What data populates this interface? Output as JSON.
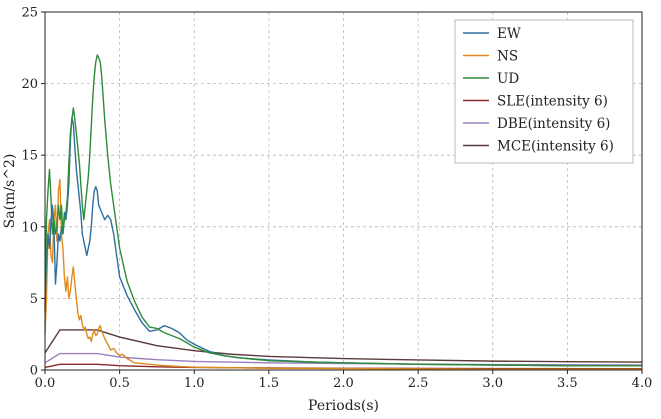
{
  "chart_data": {
    "type": "line",
    "title": "",
    "xlabel": "Periods(s)",
    "ylabel": "Sa(m/s^2)",
    "xlim": [
      0,
      4.0
    ],
    "ylim": [
      0,
      25
    ],
    "xticks": [
      0.0,
      0.5,
      1.0,
      1.5,
      2.0,
      2.5,
      3.0,
      3.5,
      4.0
    ],
    "xtick_labels": [
      "0.0",
      "0.5",
      "1.0",
      "1.5",
      "2.0",
      "2.5",
      "3.0",
      "3.5",
      "4.0"
    ],
    "yticks": [
      0,
      5,
      10,
      15,
      20,
      25
    ],
    "ytick_labels": [
      "0",
      "5",
      "10",
      "15",
      "20",
      "25"
    ],
    "grid": true,
    "legend_position": "top-right",
    "series": [
      {
        "name": "EW",
        "color": "#2e6f9e",
        "points": [
          [
            0,
            4.5
          ],
          [
            0.01,
            7.5
          ],
          [
            0.02,
            9.5
          ],
          [
            0.03,
            8.5
          ],
          [
            0.04,
            10.5
          ],
          [
            0.05,
            11.5
          ],
          [
            0.06,
            10.0
          ],
          [
            0.07,
            6.0
          ],
          [
            0.08,
            7.5
          ],
          [
            0.09,
            9.5
          ],
          [
            0.1,
            9.0
          ],
          [
            0.11,
            10.0
          ],
          [
            0.12,
            9.5
          ],
          [
            0.13,
            11.0
          ],
          [
            0.14,
            10.5
          ],
          [
            0.15,
            11.5
          ],
          [
            0.16,
            13.0
          ],
          [
            0.17,
            16.0
          ],
          [
            0.18,
            17.6
          ],
          [
            0.19,
            17.2
          ],
          [
            0.2,
            15.5
          ],
          [
            0.21,
            14.0
          ],
          [
            0.22,
            13.0
          ],
          [
            0.23,
            12.0
          ],
          [
            0.24,
            11.0
          ],
          [
            0.25,
            9.5
          ],
          [
            0.26,
            9.0
          ],
          [
            0.27,
            8.5
          ],
          [
            0.28,
            8.0
          ],
          [
            0.29,
            8.5
          ],
          [
            0.3,
            9.0
          ],
          [
            0.31,
            10.0
          ],
          [
            0.32,
            11.5
          ],
          [
            0.33,
            12.5
          ],
          [
            0.34,
            12.8
          ],
          [
            0.35,
            12.5
          ],
          [
            0.36,
            11.5
          ],
          [
            0.38,
            11.0
          ],
          [
            0.4,
            10.5
          ],
          [
            0.42,
            10.8
          ],
          [
            0.44,
            10.5
          ],
          [
            0.46,
            9.5
          ],
          [
            0.48,
            8.0
          ],
          [
            0.5,
            6.5
          ],
          [
            0.55,
            5.2
          ],
          [
            0.6,
            4.2
          ],
          [
            0.65,
            3.3
          ],
          [
            0.7,
            2.7
          ],
          [
            0.75,
            2.8
          ],
          [
            0.8,
            3.1
          ],
          [
            0.85,
            2.9
          ],
          [
            0.9,
            2.6
          ],
          [
            0.95,
            2.1
          ],
          [
            1.0,
            1.8
          ],
          [
            1.1,
            1.3
          ],
          [
            1.2,
            1.0
          ],
          [
            1.3,
            0.85
          ],
          [
            1.5,
            0.7
          ],
          [
            1.8,
            0.55
          ],
          [
            2.0,
            0.5
          ],
          [
            2.5,
            0.4
          ],
          [
            3.0,
            0.35
          ],
          [
            3.5,
            0.3
          ],
          [
            4.0,
            0.3
          ]
        ]
      },
      {
        "name": "NS",
        "color": "#e08a1e",
        "points": [
          [
            0,
            2.5
          ],
          [
            0.01,
            5.0
          ],
          [
            0.02,
            9.5
          ],
          [
            0.03,
            10.5
          ],
          [
            0.04,
            8.0
          ],
          [
            0.05,
            7.5
          ],
          [
            0.06,
            10.5
          ],
          [
            0.07,
            11.5
          ],
          [
            0.08,
            9.0
          ],
          [
            0.09,
            12.5
          ],
          [
            0.1,
            13.3
          ],
          [
            0.11,
            9.5
          ],
          [
            0.12,
            8.5
          ],
          [
            0.13,
            6.5
          ],
          [
            0.14,
            5.5
          ],
          [
            0.15,
            6.5
          ],
          [
            0.16,
            5.0
          ],
          [
            0.17,
            5.5
          ],
          [
            0.18,
            6.5
          ],
          [
            0.19,
            7.2
          ],
          [
            0.2,
            6.0
          ],
          [
            0.21,
            5.0
          ],
          [
            0.22,
            4.0
          ],
          [
            0.23,
            3.5
          ],
          [
            0.24,
            3.8
          ],
          [
            0.25,
            3.2
          ],
          [
            0.26,
            2.8
          ],
          [
            0.27,
            3.0
          ],
          [
            0.28,
            2.5
          ],
          [
            0.29,
            2.2
          ],
          [
            0.3,
            2.3
          ],
          [
            0.31,
            2.0
          ],
          [
            0.32,
            2.5
          ],
          [
            0.33,
            2.8
          ],
          [
            0.34,
            2.4
          ],
          [
            0.35,
            2.5
          ],
          [
            0.36,
            2.9
          ],
          [
            0.37,
            3.1
          ],
          [
            0.38,
            2.7
          ],
          [
            0.4,
            2.2
          ],
          [
            0.42,
            1.8
          ],
          [
            0.44,
            1.4
          ],
          [
            0.46,
            1.5
          ],
          [
            0.48,
            1.2
          ],
          [
            0.5,
            1.0
          ],
          [
            0.52,
            1.1
          ],
          [
            0.55,
            0.8
          ],
          [
            0.6,
            0.5
          ],
          [
            0.7,
            0.4
          ],
          [
            0.8,
            0.3
          ],
          [
            1.0,
            0.2
          ],
          [
            1.5,
            0.12
          ],
          [
            2.0,
            0.1
          ],
          [
            3.0,
            0.05
          ],
          [
            4.0,
            0.05
          ]
        ]
      },
      {
        "name": "UD",
        "color": "#2e8b3a",
        "points": [
          [
            0,
            4.0
          ],
          [
            0.01,
            10.5
          ],
          [
            0.02,
            12.5
          ],
          [
            0.03,
            14.0
          ],
          [
            0.04,
            12.0
          ],
          [
            0.05,
            9.5
          ],
          [
            0.06,
            10.5
          ],
          [
            0.07,
            9.5
          ],
          [
            0.08,
            10.0
          ],
          [
            0.09,
            11.5
          ],
          [
            0.1,
            10.5
          ],
          [
            0.11,
            11.5
          ],
          [
            0.12,
            9.5
          ],
          [
            0.13,
            10.5
          ],
          [
            0.14,
            11.0
          ],
          [
            0.15,
            12.0
          ],
          [
            0.16,
            14.5
          ],
          [
            0.17,
            16.5
          ],
          [
            0.18,
            17.5
          ],
          [
            0.19,
            18.3
          ],
          [
            0.2,
            17.5
          ],
          [
            0.21,
            16.5
          ],
          [
            0.22,
            15.5
          ],
          [
            0.23,
            14.5
          ],
          [
            0.24,
            13.0
          ],
          [
            0.25,
            11.5
          ],
          [
            0.26,
            10.5
          ],
          [
            0.27,
            11.5
          ],
          [
            0.28,
            12.5
          ],
          [
            0.29,
            13.5
          ],
          [
            0.3,
            15.0
          ],
          [
            0.31,
            17.0
          ],
          [
            0.32,
            19.0
          ],
          [
            0.33,
            20.5
          ],
          [
            0.34,
            21.5
          ],
          [
            0.35,
            22.0
          ],
          [
            0.36,
            21.8
          ],
          [
            0.37,
            21.5
          ],
          [
            0.38,
            20.5
          ],
          [
            0.39,
            19.0
          ],
          [
            0.4,
            17.5
          ],
          [
            0.42,
            15.0
          ],
          [
            0.44,
            13.0
          ],
          [
            0.46,
            11.5
          ],
          [
            0.48,
            10.0
          ],
          [
            0.5,
            8.5
          ],
          [
            0.55,
            6.2
          ],
          [
            0.6,
            4.8
          ],
          [
            0.65,
            3.7
          ],
          [
            0.7,
            3.0
          ],
          [
            0.75,
            2.9
          ],
          [
            0.8,
            2.6
          ],
          [
            0.85,
            2.4
          ],
          [
            0.9,
            2.2
          ],
          [
            0.95,
            1.9
          ],
          [
            1.0,
            1.6
          ],
          [
            1.1,
            1.2
          ],
          [
            1.2,
            1.0
          ],
          [
            1.3,
            0.85
          ],
          [
            1.5,
            0.65
          ],
          [
            1.8,
            0.55
          ],
          [
            2.0,
            0.5
          ],
          [
            2.5,
            0.4
          ],
          [
            3.0,
            0.35
          ],
          [
            3.5,
            0.3
          ],
          [
            4.0,
            0.3
          ]
        ]
      },
      {
        "name": "SLE(intensity 6)",
        "color": "#8b2a2a",
        "points": [
          [
            0,
            0.18
          ],
          [
            0.1,
            0.4
          ],
          [
            0.35,
            0.4
          ],
          [
            0.5,
            0.3
          ],
          [
            0.75,
            0.22
          ],
          [
            1.0,
            0.18
          ],
          [
            1.5,
            0.14
          ],
          [
            2.0,
            0.12
          ],
          [
            3.0,
            0.1
          ],
          [
            4.0,
            0.09
          ]
        ]
      },
      {
        "name": "DBE(intensity 6)",
        "color": "#9b7fc0",
        "points": [
          [
            0,
            0.5
          ],
          [
            0.1,
            1.15
          ],
          [
            0.35,
            1.15
          ],
          [
            0.5,
            0.9
          ],
          [
            0.75,
            0.72
          ],
          [
            1.0,
            0.6
          ],
          [
            1.5,
            0.5
          ],
          [
            2.0,
            0.45
          ],
          [
            3.0,
            0.38
          ],
          [
            4.0,
            0.35
          ]
        ]
      },
      {
        "name": "MCE(intensity 6)",
        "color": "#5a3a3a",
        "points": [
          [
            0,
            1.2
          ],
          [
            0.1,
            2.8
          ],
          [
            0.35,
            2.8
          ],
          [
            0.5,
            2.3
          ],
          [
            0.75,
            1.7
          ],
          [
            1.0,
            1.35
          ],
          [
            1.25,
            1.1
          ],
          [
            1.5,
            0.95
          ],
          [
            2.0,
            0.8
          ],
          [
            2.5,
            0.7
          ],
          [
            3.0,
            0.62
          ],
          [
            3.5,
            0.58
          ],
          [
            4.0,
            0.55
          ]
        ]
      }
    ]
  }
}
